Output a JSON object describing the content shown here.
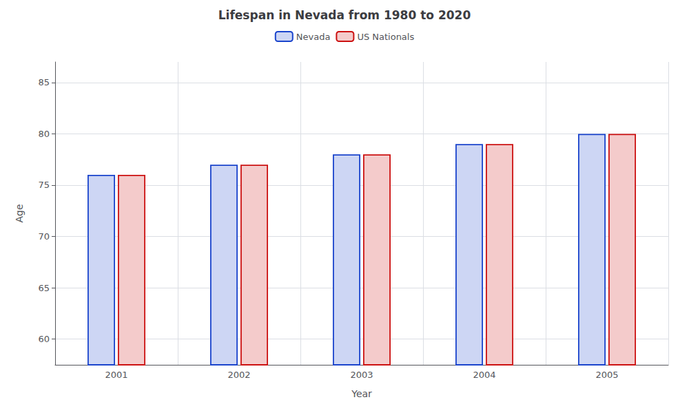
{
  "chart_data": {
    "type": "bar",
    "title": "Lifespan in Nevada from 1980 to 2020",
    "x_label": "Year",
    "y_label": "Age",
    "categories": [
      "2001",
      "2002",
      "2003",
      "2004",
      "2005"
    ],
    "series": [
      {
        "name": "Nevada",
        "color": "#1a44cc",
        "values": [
          76,
          77,
          78,
          79,
          80
        ]
      },
      {
        "name": "US Nationals",
        "color": "#cc1111",
        "values": [
          76,
          77,
          78,
          79,
          80
        ]
      }
    ],
    "ylim": [
      57.5,
      87
    ],
    "yticks": [
      60,
      65,
      70,
      75,
      80,
      85
    ],
    "grid": true,
    "legend": "top"
  }
}
